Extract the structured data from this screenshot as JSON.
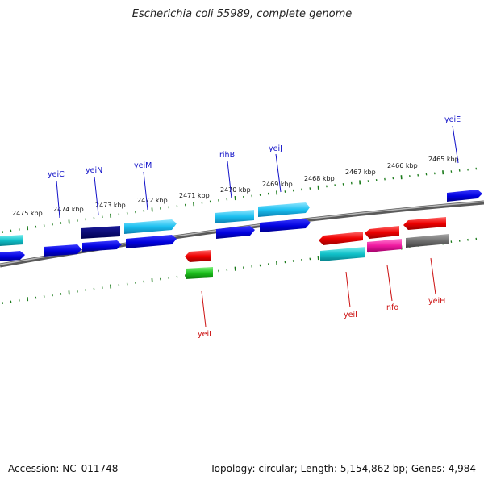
{
  "title": "Escherichia coli 55989, complete genome",
  "footer": {
    "accession": "Accession: NC_011748",
    "stats": "Topology: circular; Length: 5,154,862 bp; Genes: 4,984"
  },
  "colors": {
    "backbone": "#808080",
    "ticks": "#1a7a1a",
    "label_forward": "#1010c8",
    "label_reverse": "#cc1010"
  },
  "ticks": [
    {
      "label": "2475 kbp"
    },
    {
      "label": "2474 kbp"
    },
    {
      "label": "2473 kbp"
    },
    {
      "label": "2472 kbp"
    },
    {
      "label": "2471 kbp"
    },
    {
      "label": "2470 kbp"
    },
    {
      "label": "2469 kbp"
    },
    {
      "label": "2468 kbp"
    },
    {
      "label": "2467 kbp"
    },
    {
      "label": "2466 kbp"
    },
    {
      "label": "2465 kbp"
    }
  ],
  "gene_labels": [
    {
      "text": "yeiC",
      "strand": "forward"
    },
    {
      "text": "yeiN",
      "strand": "forward"
    },
    {
      "text": "yeiM",
      "strand": "forward"
    },
    {
      "text": "rihB",
      "strand": "forward"
    },
    {
      "text": "yeiJ",
      "strand": "forward"
    },
    {
      "text": "yeiE",
      "strand": "forward"
    },
    {
      "text": "yeiL",
      "strand": "reverse"
    },
    {
      "text": "yeiI",
      "strand": "reverse"
    },
    {
      "text": "nfo",
      "strand": "reverse"
    },
    {
      "text": "yeiH",
      "strand": "reverse"
    }
  ]
}
